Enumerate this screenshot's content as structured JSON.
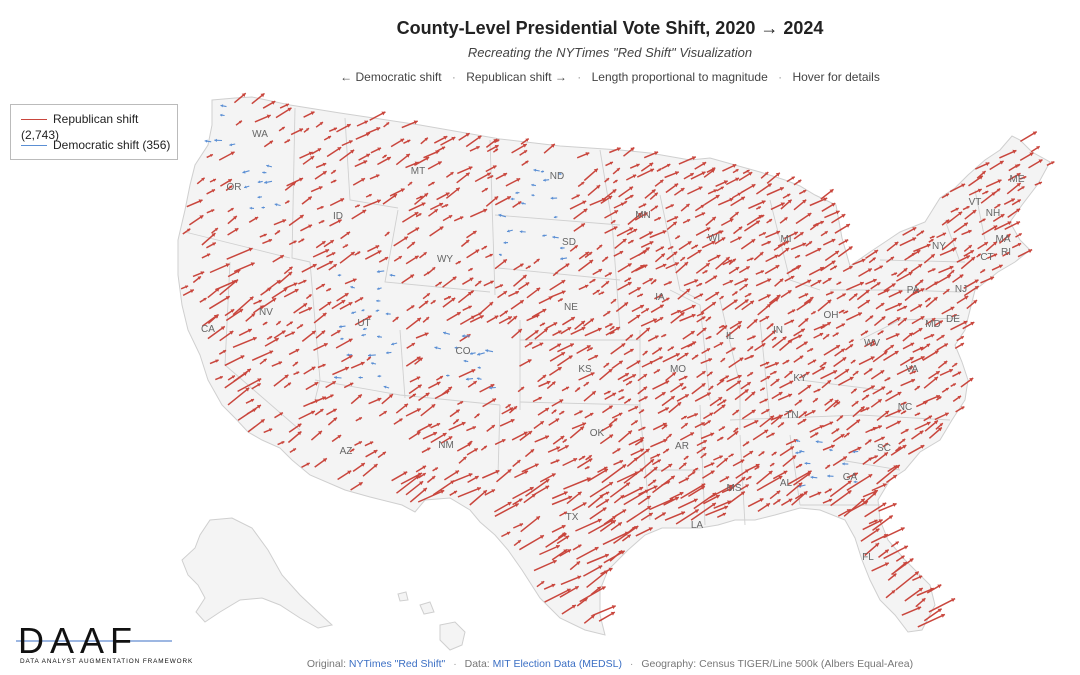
{
  "header": {
    "title": "County-Level Presidential Vote Shift, 2020 → 2024",
    "subtitle": "Recreating the NYTimes \"Red Shift\" Visualization",
    "hint_dem": "← Democratic shift",
    "hint_rep": "Republican shift →",
    "hint_length": "Length proportional to magnitude",
    "hint_hover": "Hover for details",
    "separator": "·"
  },
  "legend": {
    "republican": "Republican shift (2,743)",
    "democratic": "Democratic shift (356)"
  },
  "colors": {
    "republican": "#c9463d",
    "democratic": "#5b8fd4",
    "land": "#f4f4f4",
    "border": "#d0d0d0"
  },
  "map": {
    "state_labels": [
      "WA",
      "OR",
      "CA",
      "NV",
      "ID",
      "MT",
      "WY",
      "UT",
      "AZ",
      "CO",
      "NM",
      "ND",
      "SD",
      "NE",
      "KS",
      "OK",
      "TX",
      "MN",
      "WI",
      "IA",
      "IL",
      "MO",
      "AR",
      "LA",
      "MS",
      "AL",
      "GA",
      "FL",
      "TN",
      "KY",
      "IN",
      "OH",
      "MI",
      "PA",
      "NY",
      "VT",
      "NH",
      "ME",
      "MA",
      "RI",
      "CT",
      "NJ",
      "DE",
      "MD",
      "WV",
      "VA",
      "NC",
      "SC"
    ],
    "counts": {
      "republican": 2743,
      "democratic": 356
    }
  },
  "footer": {
    "original_prefix": "Original:",
    "original_link": "NYTimes \"Red Shift\"",
    "data_prefix": "Data:",
    "data_link": "MIT Election Data (MEDSL)",
    "geography": "Geography: Census TIGER/Line 500k (Albers Equal-Area)"
  },
  "logo": {
    "name": "DAAF",
    "tagline": "DATA ANALYST AUGMENTATION FRAMEWORK"
  }
}
